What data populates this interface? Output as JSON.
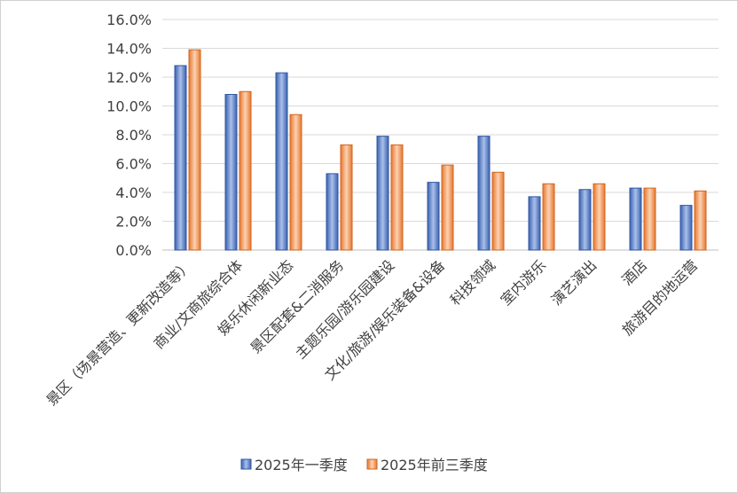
{
  "chart_data": {
    "type": "bar",
    "categories": [
      "景区（场景营造、更新改造等）",
      "商业/文商旅综合体",
      "娱乐休闲新业态",
      "景区配套&二消服务",
      "主题乐园/游乐园建设",
      "文化/旅游/娱乐装备&设备",
      "科技领域",
      "室内游乐",
      "演艺演出",
      "酒店",
      "旅游目的地运营"
    ],
    "series": [
      {
        "name": "2025年一季度",
        "values": [
          12.8,
          10.8,
          12.3,
          5.3,
          7.9,
          4.7,
          7.9,
          3.7,
          4.2,
          4.3,
          3.1
        ]
      },
      {
        "name": "2025年前三季度",
        "values": [
          13.9,
          11.0,
          9.4,
          7.3,
          7.3,
          5.9,
          5.4,
          4.6,
          4.6,
          4.3,
          4.1
        ]
      }
    ],
    "ylim": [
      0,
      16
    ],
    "yticks": [
      "0.0%",
      "2.0%",
      "4.0%",
      "6.0%",
      "8.0%",
      "10.0%",
      "12.0%",
      "14.0%",
      "16.0%"
    ],
    "grid": true,
    "legend_position": "bottom",
    "colors": {
      "series1": "#4472C4",
      "series2": "#ED7D31"
    }
  }
}
